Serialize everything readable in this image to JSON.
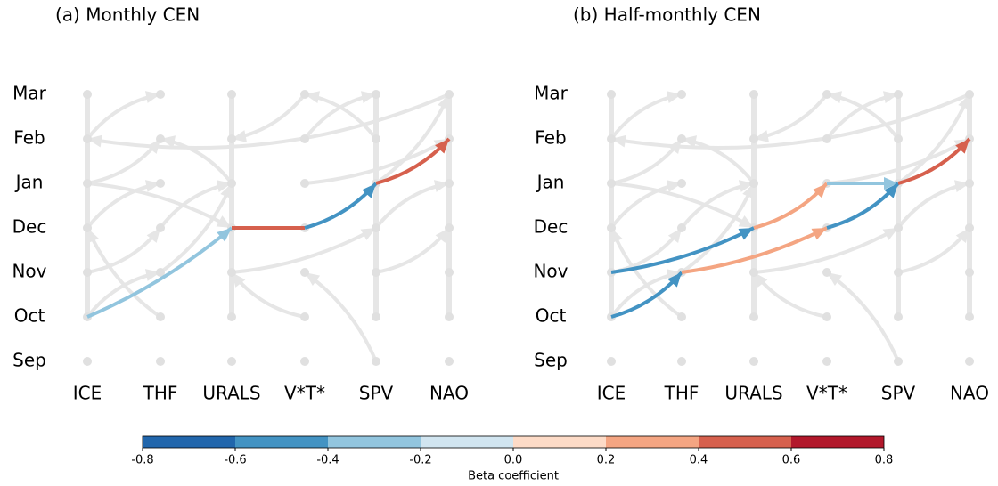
{
  "panels": [
    {
      "title": "(a) Monthly CEN",
      "columns": [
        "ICE",
        "THF",
        "URALS",
        "V*T*",
        "SPV",
        "NAO"
      ],
      "rows": [
        "Mar",
        "Feb",
        "Jan",
        "Dec",
        "Nov",
        "Oct",
        "Sep"
      ],
      "edges": [
        {
          "from": [
            0,
            5
          ],
          "to": [
            2,
            3
          ],
          "beta": -0.3
        },
        {
          "from": [
            2,
            3
          ],
          "to": [
            3,
            3
          ],
          "beta": 0.5
        },
        {
          "from": [
            3,
            3
          ],
          "to": [
            4,
            2
          ],
          "beta": -0.5
        },
        {
          "from": [
            4,
            2
          ],
          "to": [
            5,
            1
          ],
          "beta": 0.5
        }
      ]
    },
    {
      "title": "(b) Half-monthly CEN",
      "columns": [
        "ICE",
        "THF",
        "URALS",
        "V*T*",
        "SPV",
        "NAO"
      ],
      "rows": [
        "Mar",
        "Feb",
        "Jan",
        "Dec",
        "Nov",
        "Oct",
        "Sep"
      ],
      "edges": [
        {
          "from": [
            0,
            5
          ],
          "to": [
            1,
            4
          ],
          "beta": -0.5
        },
        {
          "from": [
            0,
            4
          ],
          "to": [
            2,
            3
          ],
          "beta": -0.5
        },
        {
          "from": [
            1,
            4
          ],
          "to": [
            3,
            3
          ],
          "beta": 0.3
        },
        {
          "from": [
            2,
            3
          ],
          "to": [
            3,
            2
          ],
          "beta": 0.3
        },
        {
          "from": [
            3,
            2
          ],
          "to": [
            4,
            2
          ],
          "beta": -0.3
        },
        {
          "from": [
            3,
            3
          ],
          "to": [
            4,
            2
          ],
          "beta": -0.5
        },
        {
          "from": [
            4,
            2
          ],
          "to": [
            5,
            1
          ],
          "beta": 0.5
        }
      ]
    }
  ],
  "colorbar": {
    "label": "Beta coefficient",
    "ticks": [
      -0.8,
      -0.6,
      -0.4,
      -0.2,
      0.0,
      0.2,
      0.4,
      0.6,
      0.8
    ],
    "colors": [
      "#2166ac",
      "#4393c3",
      "#92c5de",
      "#d1e5f0",
      "#fddbc7",
      "#f4a582",
      "#d6604d",
      "#b2182b"
    ]
  }
}
